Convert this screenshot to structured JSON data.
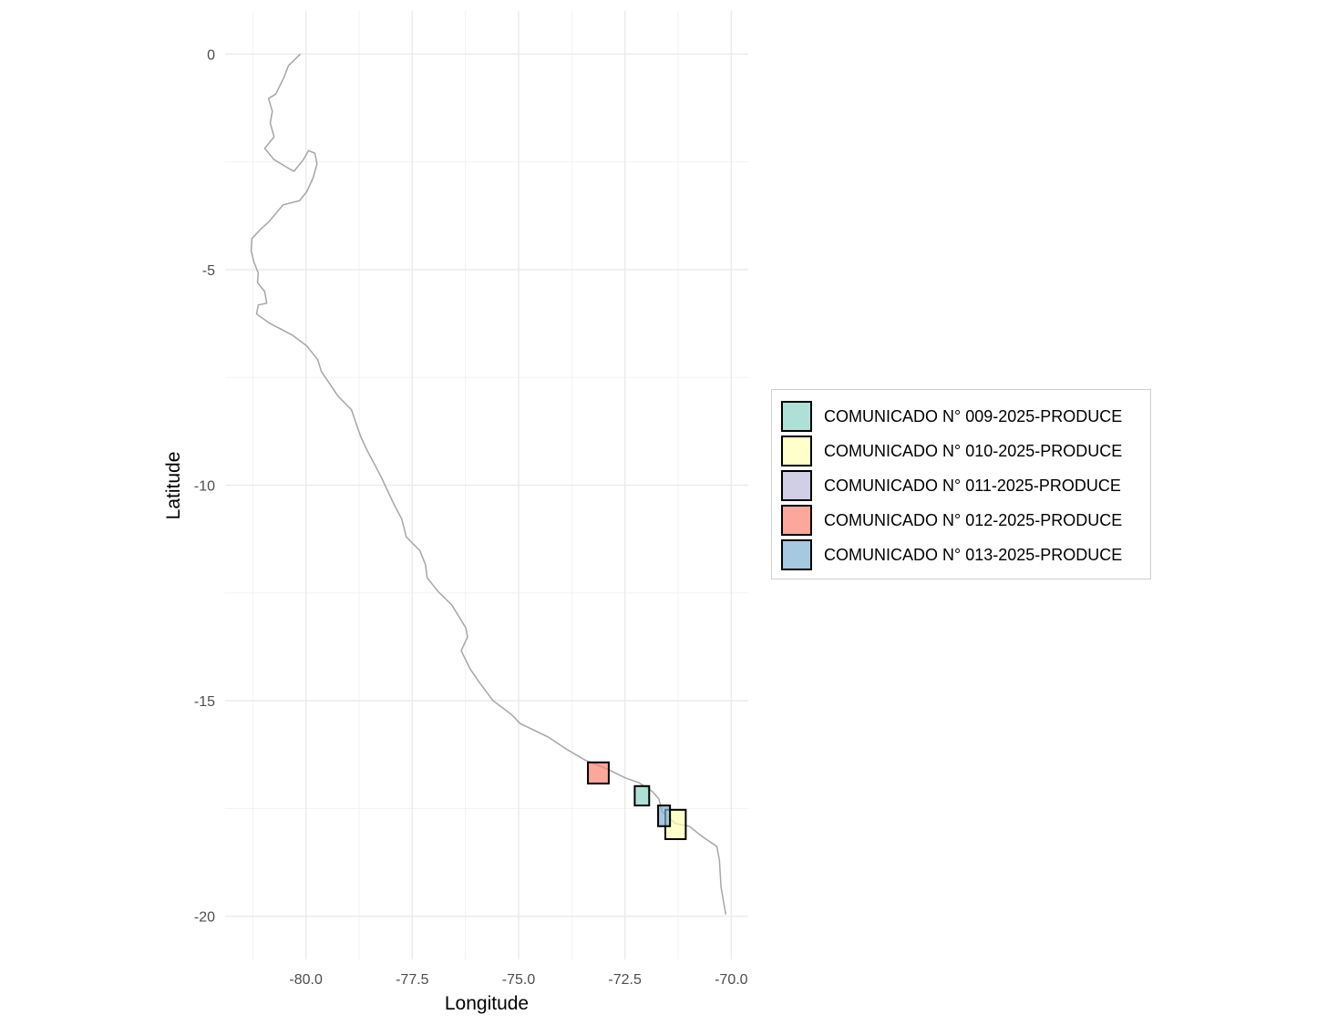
{
  "chart_data": {
    "type": "map",
    "xlabel": "Longitude",
    "ylabel": "Latitude",
    "xlim": [
      -81.9,
      -69.6
    ],
    "ylim": [
      -21,
      1
    ],
    "x_ticks": [
      -80.0,
      -77.5,
      -75.0,
      -72.5,
      -70.0
    ],
    "x_tick_labels": [
      "-80.0",
      "-77.5",
      "-75.0",
      "-72.5",
      "-70.0"
    ],
    "y_ticks": [
      0,
      -5,
      -10,
      -15,
      -20
    ],
    "y_tick_labels": [
      "0",
      "-5",
      "-10",
      "-15",
      "-20"
    ],
    "grid": true,
    "legend_position": "right",
    "coastline_color": "#a6a6a6",
    "coastline": [
      [
        -80.13,
        0
      ],
      [
        -80.41,
        -0.27
      ],
      [
        -80.52,
        -0.55
      ],
      [
        -80.71,
        -0.93
      ],
      [
        -80.88,
        -1.03
      ],
      [
        -80.79,
        -1.33
      ],
      [
        -80.84,
        -1.6
      ],
      [
        -80.75,
        -1.92
      ],
      [
        -80.97,
        -2.19
      ],
      [
        -80.75,
        -2.45
      ],
      [
        -80.36,
        -2.68
      ],
      [
        -80.28,
        -2.72
      ],
      [
        -80.06,
        -2.45
      ],
      [
        -79.94,
        -2.24
      ],
      [
        -79.79,
        -2.3
      ],
      [
        -79.74,
        -2.55
      ],
      [
        -79.83,
        -2.87
      ],
      [
        -79.98,
        -3.19
      ],
      [
        -80.15,
        -3.4
      ],
      [
        -80.54,
        -3.5
      ],
      [
        -80.86,
        -3.88
      ],
      [
        -81.07,
        -4.07
      ],
      [
        -81.27,
        -4.28
      ],
      [
        -81.29,
        -4.56
      ],
      [
        -81.22,
        -4.83
      ],
      [
        -81.12,
        -5.08
      ],
      [
        -81.14,
        -5.3
      ],
      [
        -80.97,
        -5.51
      ],
      [
        -80.92,
        -5.78
      ],
      [
        -81.12,
        -5.82
      ],
      [
        -81.16,
        -6.03
      ],
      [
        -80.86,
        -6.24
      ],
      [
        -80.32,
        -6.52
      ],
      [
        -79.98,
        -6.77
      ],
      [
        -79.72,
        -7.09
      ],
      [
        -79.64,
        -7.36
      ],
      [
        -79.46,
        -7.62
      ],
      [
        -79.25,
        -7.93
      ],
      [
        -78.93,
        -8.25
      ],
      [
        -78.82,
        -8.57
      ],
      [
        -78.71,
        -8.88
      ],
      [
        -78.56,
        -9.2
      ],
      [
        -78.39,
        -9.51
      ],
      [
        -78.22,
        -9.83
      ],
      [
        -78.07,
        -10.15
      ],
      [
        -77.92,
        -10.46
      ],
      [
        -77.75,
        -10.78
      ],
      [
        -77.64,
        -11.2
      ],
      [
        -77.32,
        -11.52
      ],
      [
        -77.19,
        -11.84
      ],
      [
        -77.15,
        -12.15
      ],
      [
        -76.89,
        -12.47
      ],
      [
        -76.57,
        -12.78
      ],
      [
        -76.24,
        -13.31
      ],
      [
        -76.2,
        -13.52
      ],
      [
        -76.35,
        -13.84
      ],
      [
        -76.14,
        -14.26
      ],
      [
        -75.92,
        -14.58
      ],
      [
        -75.6,
        -15.0
      ],
      [
        -75.17,
        -15.32
      ],
      [
        -74.96,
        -15.53
      ],
      [
        -74.31,
        -15.84
      ],
      [
        -73.88,
        -16.12
      ],
      [
        -73.45,
        -16.37
      ],
      [
        -72.92,
        -16.58
      ],
      [
        -72.49,
        -16.79
      ],
      [
        -72.17,
        -16.9
      ],
      [
        -71.85,
        -17.11
      ],
      [
        -71.7,
        -17.28
      ],
      [
        -71.63,
        -17.57
      ],
      [
        -71.31,
        -17.85
      ],
      [
        -70.99,
        -17.91
      ],
      [
        -70.67,
        -18.16
      ],
      [
        -70.34,
        -18.38
      ],
      [
        -70.28,
        -18.69
      ],
      [
        -70.24,
        -19.32
      ],
      [
        -70.13,
        -19.96
      ]
    ],
    "series": [
      {
        "name": "COMUNICADO N° 009-2025-PRODUCE",
        "color": "#8DD3C7",
        "rects": [
          {
            "lon": [
              -72.27,
              -71.93
            ],
            "lat": [
              -16.98,
              -17.43
            ]
          }
        ]
      },
      {
        "name": "COMUNICADO N° 010-2025-PRODUCE",
        "color": "#FFFFB3",
        "rects": [
          {
            "lon": [
              -71.55,
              -71.07
            ],
            "lat": [
              -17.53,
              -18.21
            ]
          }
        ]
      },
      {
        "name": "COMUNICADO N° 011-2025-PRODUCE",
        "color": "#BEBADA",
        "rects": []
      },
      {
        "name": "COMUNICADO N° 012-2025-PRODUCE",
        "color": "#FB8072",
        "rects": [
          {
            "lon": [
              -73.37,
              -72.88
            ],
            "lat": [
              -16.43,
              -16.92
            ]
          }
        ]
      },
      {
        "name": "COMUNICADO N° 013-2025-PRODUCE",
        "color": "#80B1D3",
        "rects": [
          {
            "lon": [
              -71.72,
              -71.44
            ],
            "lat": [
              -17.43,
              -17.91
            ]
          }
        ]
      }
    ],
    "fill_alpha": 0.7
  }
}
